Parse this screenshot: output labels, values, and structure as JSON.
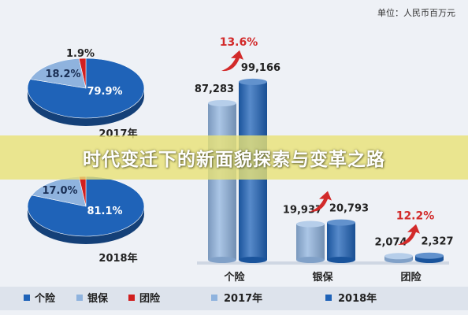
{
  "banner_text": "时代变迁下的新面貌探索与变革之路",
  "unit_label": "单位：人民币百万元",
  "colors": {
    "personal": "#1f63b8",
    "bank": "#8fb3de",
    "group": "#d11f1f",
    "year2017": "#8fb3de",
    "year2018": "#1f63b8",
    "growth_text": "#d22a2a",
    "axis": "#cfd7e3"
  },
  "chart_data": [
    {
      "type": "pie",
      "title": "2017年",
      "slices": [
        {
          "name": "个险",
          "value": 79.9,
          "label": "79.9%"
        },
        {
          "name": "银保",
          "value": 18.2,
          "label": "18.2%"
        },
        {
          "name": "团险",
          "value": 1.9,
          "label": "1.9%"
        }
      ]
    },
    {
      "type": "pie",
      "title": "2018年",
      "slices": [
        {
          "name": "个险",
          "value": 81.1,
          "label": "81.1%"
        },
        {
          "name": "银保",
          "value": 17.0,
          "label": "17.0%"
        },
        {
          "name": "团险",
          "value": 1.9,
          "label": ""
        }
      ]
    },
    {
      "type": "bar",
      "categories": [
        "个险",
        "银保",
        "团险"
      ],
      "series": [
        {
          "name": "2017年",
          "values": [
            87283,
            19937,
            2074
          ],
          "labels": [
            "87,283",
            "19,937",
            "2,074"
          ]
        },
        {
          "name": "2018年",
          "values": [
            99166,
            20793,
            2327
          ],
          "labels": [
            "99,166",
            "20,793",
            "2,327"
          ]
        }
      ],
      "growth_labels": [
        "13.6%",
        "",
        "12.2%"
      ],
      "ylim": [
        0,
        100000
      ]
    }
  ],
  "legend": {
    "pie": [
      "个险",
      "银保",
      "团险"
    ],
    "bar": [
      "2017年",
      "2018年"
    ]
  }
}
